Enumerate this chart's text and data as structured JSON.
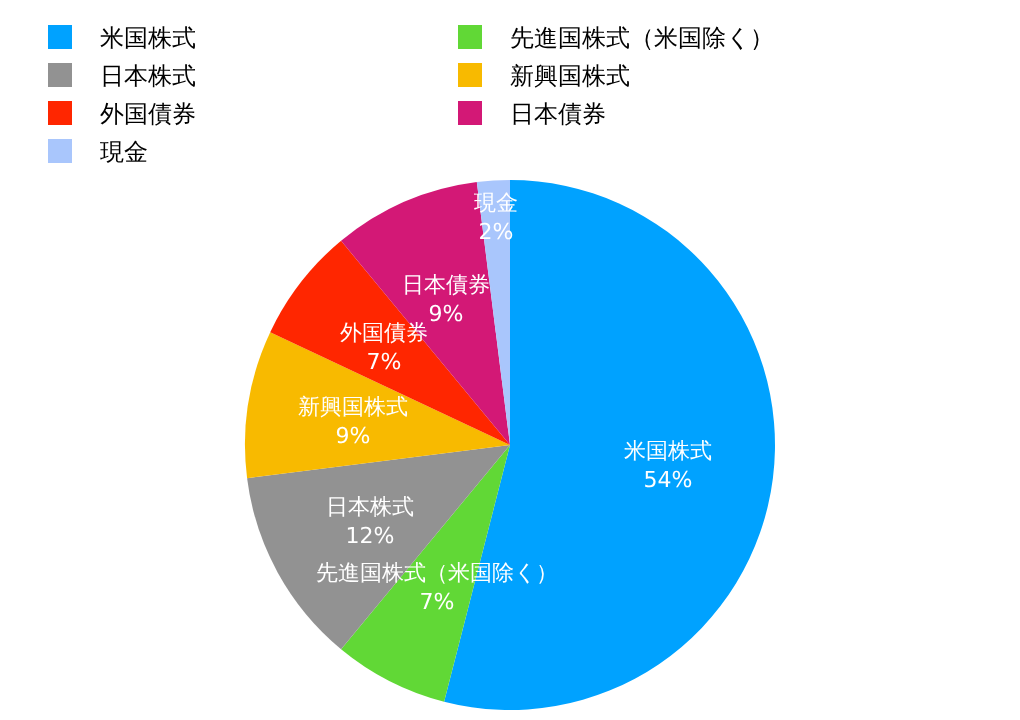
{
  "chart_data": {
    "type": "pie",
    "categories": [
      "米国株式",
      "先進国株式（米国除く）",
      "日本株式",
      "新興国株式",
      "外国債券",
      "日本債券",
      "現金"
    ],
    "values": [
      54,
      7,
      12,
      9,
      7,
      9,
      2
    ],
    "colors": [
      "#00a2ff",
      "#61d836",
      "#929292",
      "#f8ba00",
      "#ff2600",
      "#d31876",
      "#a9c6fc"
    ],
    "value_labels": [
      "54%",
      "7%",
      "12%",
      "9%",
      "7%",
      "9%",
      "2%"
    ],
    "legend": "top"
  }
}
